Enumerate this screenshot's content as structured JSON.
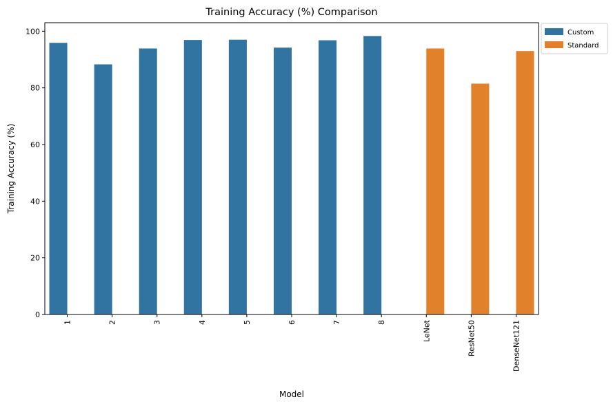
{
  "chart_data": {
    "type": "bar",
    "title": "Training Accuracy (%) Comparison",
    "xlabel": "Model",
    "ylabel": "Training Accuracy (%)",
    "ylim": [
      0,
      103
    ],
    "yticks": [
      0,
      20,
      40,
      60,
      80,
      100
    ],
    "categories": [
      "1",
      "2",
      "3",
      "4",
      "5",
      "6",
      "7",
      "8",
      "LeNet",
      "ResNet50",
      "DenseNet121"
    ],
    "series": [
      {
        "name": "Custom",
        "color": "#3274a1",
        "values": [
          95.9,
          88.3,
          93.9,
          96.9,
          97.0,
          94.2,
          96.8,
          98.3,
          null,
          null,
          null
        ]
      },
      {
        "name": "Standard",
        "color": "#e1812c",
        "values": [
          null,
          null,
          null,
          null,
          null,
          null,
          null,
          null,
          93.9,
          81.5,
          93.0
        ]
      }
    ],
    "legend_position": "outside-top-right",
    "grid": false
  }
}
